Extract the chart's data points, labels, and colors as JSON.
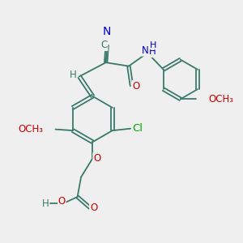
{
  "bg_color": "#efefef",
  "bond_color": "#3a7a6a",
  "bond_width": 1.3,
  "atom_colors": {
    "N": "#0000cc",
    "O": "#cc0000",
    "Cl": "#00aa00",
    "C": "#3a7a6a",
    "H": "#3a7a6a"
  },
  "font_size": 8.5,
  "fig_size": [
    3.0,
    3.0
  ],
  "dpi": 100,
  "xlim": [
    0,
    10
  ],
  "ylim": [
    0,
    10
  ]
}
